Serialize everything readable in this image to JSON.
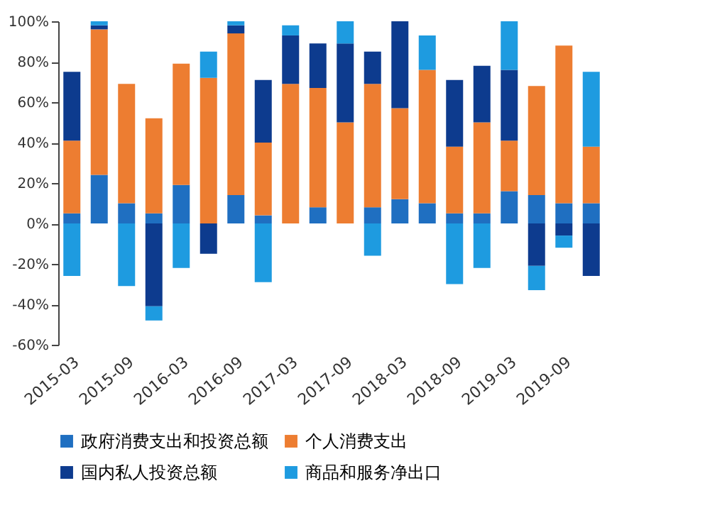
{
  "chart_data": {
    "type": "bar",
    "stacked": true,
    "categories": [
      "2015-03",
      null,
      "2015-09",
      null,
      "2016-03",
      null,
      "2016-09",
      null,
      "2017-03",
      null,
      "2017-09",
      null,
      "2018-03",
      null,
      "2018-09",
      null,
      "2019-03",
      null,
      "2019-09",
      null
    ],
    "series": [
      {
        "name": "政府消费支出和投资总额",
        "color": "#1f6fc1",
        "values": [
          5,
          24,
          10,
          5,
          19,
          null,
          14,
          4,
          null,
          8,
          null,
          8,
          12,
          10,
          5,
          5,
          16,
          14,
          10,
          10
        ]
      },
      {
        "name": "个人消费支出",
        "color": "#ed7d31",
        "values": [
          36,
          72,
          59,
          47,
          60,
          72,
          80,
          36,
          69,
          59,
          50,
          61,
          45,
          66,
          33,
          45,
          25,
          54,
          78,
          28
        ]
      },
      {
        "name": "国内私人投资总额",
        "color": "#0d3b8e",
        "values": [
          34,
          2,
          null,
          -41,
          null,
          -15,
          4,
          31,
          24,
          22,
          39,
          16,
          43,
          null,
          33,
          28,
          35,
          -21,
          -6,
          -26
        ]
      },
      {
        "name": "商品和服务净出口",
        "color": "#1e9be0",
        "values": [
          -26,
          2,
          -31,
          -7,
          -22,
          13,
          2,
          -29,
          5,
          null,
          11,
          -16,
          null,
          17,
          -30,
          -22,
          24,
          -12,
          -6,
          37
        ]
      }
    ],
    "ylim": [
      -60,
      100
    ],
    "yticks": [
      {
        "value": -60,
        "label": "-60%"
      },
      {
        "value": -40,
        "label": "-40%"
      },
      {
        "value": -20,
        "label": "-20%"
      },
      {
        "value": 0,
        "label": "0%"
      },
      {
        "value": 20,
        "label": "20%"
      },
      {
        "value": 40,
        "label": "40%"
      },
      {
        "value": 60,
        "label": "60%"
      },
      {
        "value": 80,
        "label": "80%"
      },
      {
        "value": 100,
        "label": "100%"
      }
    ],
    "grid": false,
    "legend": "bottom"
  }
}
